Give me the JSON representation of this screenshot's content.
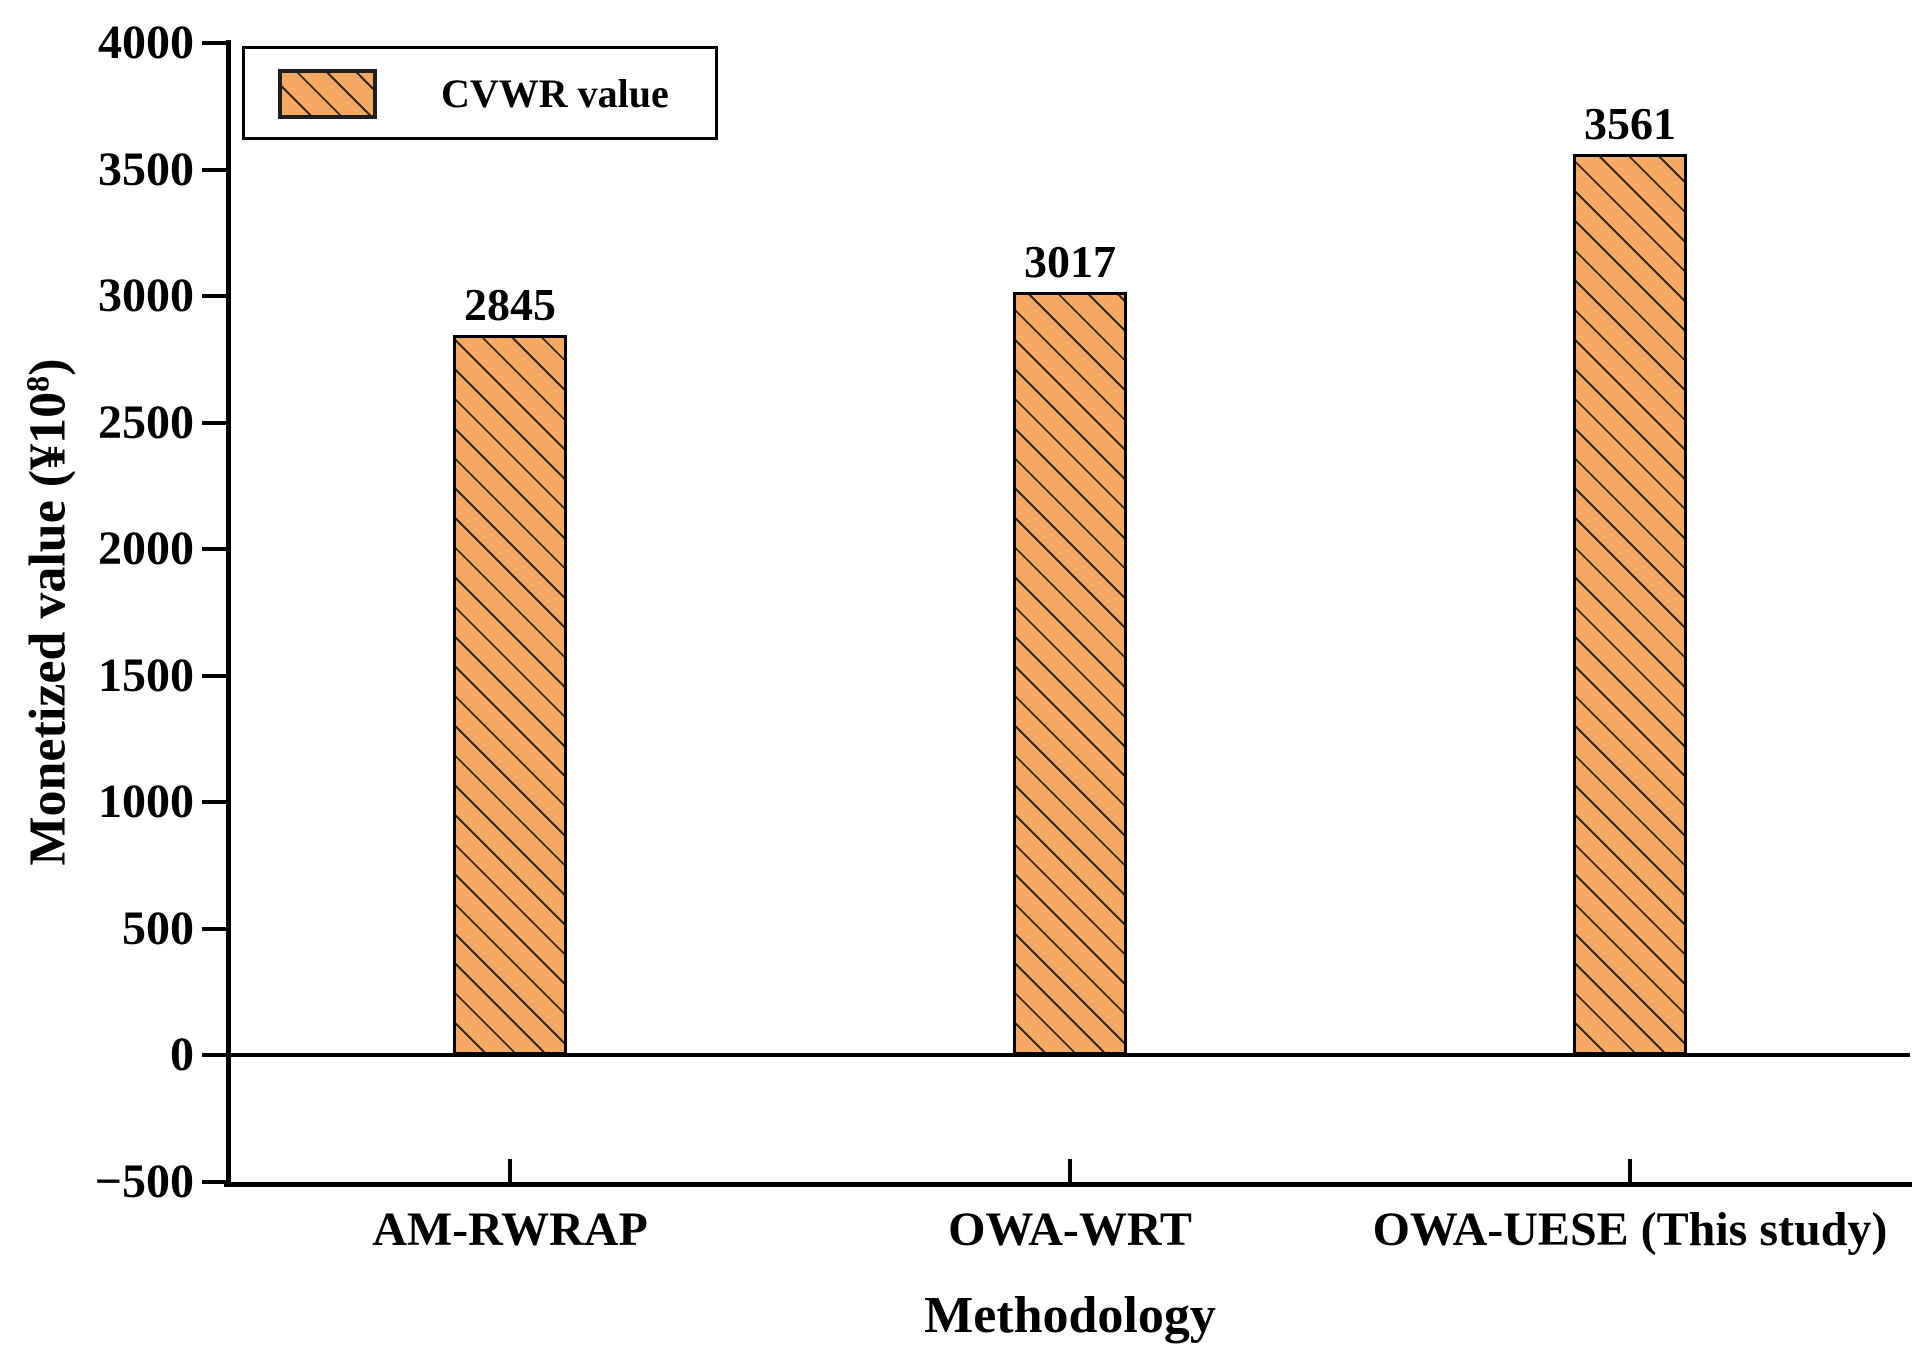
{
  "chart_data": {
    "type": "bar",
    "title": "",
    "categories": [
      "AM-RWRAP",
      "OWA-WRT",
      "OWA-UESE (This study)"
    ],
    "values": [
      2845,
      3017,
      3561
    ],
    "bar_labels": [
      "2845",
      "3017",
      "3561"
    ],
    "series": [
      {
        "name": "CVWR value",
        "values": [
          2845,
          3017,
          3561
        ]
      }
    ],
    "xlabel": "Methodology",
    "ylabel": "Monetized value (¥10⁸)",
    "ylabel_parts": {
      "prefix": "Monetized value (¥10",
      "sup": "8",
      "suffix": ")"
    },
    "ylim": [
      -500,
      4000
    ],
    "ytick_step": 500,
    "yticks": [
      {
        "value": 4000,
        "label": "4000"
      },
      {
        "value": 3500,
        "label": "3500"
      },
      {
        "value": 3000,
        "label": "3000"
      },
      {
        "value": 2500,
        "label": "2500"
      },
      {
        "value": 2000,
        "label": "2000"
      },
      {
        "value": 1500,
        "label": "1500"
      },
      {
        "value": 1000,
        "label": "1000"
      },
      {
        "value": 500,
        "label": "500"
      },
      {
        "value": 0,
        "label": "0"
      },
      {
        "value": -500,
        "label": "−500"
      }
    ],
    "legend": {
      "label": "CVWR value",
      "position": "upper-left",
      "border": true
    },
    "grid": false,
    "style": {
      "bar_fill": "#F6A963",
      "bar_edge": "#000000",
      "hatch": "\\",
      "text_color": "#000000",
      "background": "#FFFFFF"
    }
  }
}
